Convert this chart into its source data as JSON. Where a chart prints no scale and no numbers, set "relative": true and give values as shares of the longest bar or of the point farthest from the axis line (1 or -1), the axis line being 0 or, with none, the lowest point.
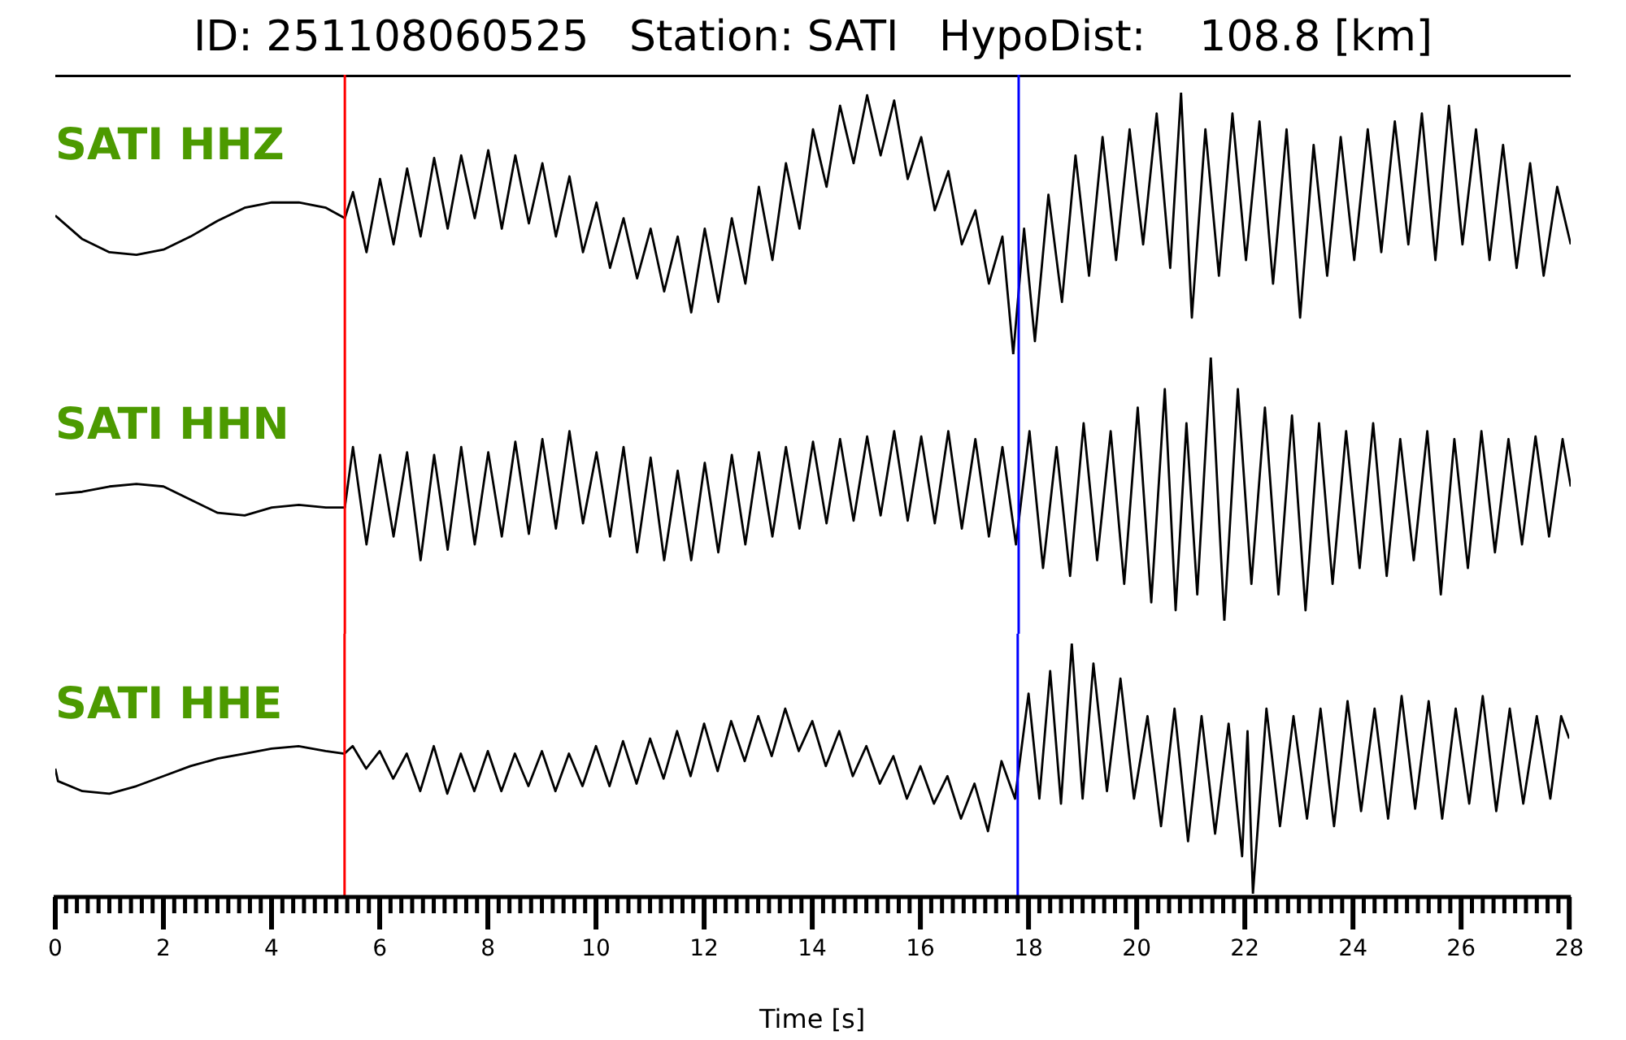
{
  "chart_data": [
    {
      "type": "line",
      "title": "ID: 251108060525   Station: SATI   HypoDist:    108.8 [km]",
      "relative": true,
      "xlim": [
        0,
        28
      ],
      "tick_labels": false,
      "ref_lines": [
        {
          "axis": "x",
          "value": 5.35,
          "color": "#ff0000"
        },
        {
          "axis": "x",
          "value": 17.8,
          "color": "#0000ff"
        }
      ],
      "series": [
        {
          "name": "SATI HHZ",
          "color": "#000000",
          "x": [
            0,
            0.5,
            1,
            1.5,
            2,
            2.5,
            3,
            3.5,
            4,
            4.5,
            5,
            5.35,
            5.5,
            5.75,
            6,
            6.25,
            6.5,
            6.75,
            7,
            7.25,
            7.5,
            7.75,
            8,
            8.25,
            8.5,
            8.75,
            9,
            9.25,
            9.5,
            9.75,
            10,
            10.25,
            10.5,
            10.75,
            11,
            11.25,
            11.5,
            11.75,
            12,
            12.25,
            12.5,
            12.75,
            13,
            13.25,
            13.5,
            13.75,
            14,
            14.25,
            14.5,
            14.75,
            15,
            15.25,
            15.5,
            15.75,
            16,
            16.25,
            16.5,
            16.75,
            17,
            17.25,
            17.5,
            17.7,
            17.9,
            18.1,
            18.35,
            18.6,
            18.85,
            19.1,
            19.35,
            19.6,
            19.85,
            20.1,
            20.35,
            20.6,
            20.8,
            21,
            21.25,
            21.5,
            21.75,
            22,
            22.25,
            22.5,
            22.75,
            23,
            23.25,
            23.5,
            23.75,
            24,
            24.25,
            24.5,
            24.75,
            25,
            25.25,
            25.5,
            25.75,
            26,
            26.25,
            26.5,
            26.75,
            27,
            27.25,
            27.5,
            27.75,
            28
          ],
          "values": [
            0.53,
            0.44,
            0.39,
            0.38,
            0.4,
            0.45,
            0.51,
            0.56,
            0.58,
            0.58,
            0.56,
            0.52,
            0.62,
            0.39,
            0.67,
            0.42,
            0.71,
            0.45,
            0.75,
            0.48,
            0.76,
            0.52,
            0.78,
            0.48,
            0.76,
            0.5,
            0.73,
            0.45,
            0.68,
            0.39,
            0.58,
            0.33,
            0.52,
            0.29,
            0.48,
            0.24,
            0.45,
            0.16,
            0.48,
            0.2,
            0.52,
            0.27,
            0.64,
            0.36,
            0.73,
            0.48,
            0.86,
            0.64,
            0.95,
            0.73,
            0.99,
            0.76,
            0.97,
            0.67,
            0.83,
            0.55,
            0.7,
            0.42,
            0.55,
            0.27,
            0.45,
            0.0,
            0.48,
            0.05,
            0.61,
            0.2,
            0.76,
            0.3,
            0.83,
            0.36,
            0.86,
            0.42,
            0.92,
            0.33,
            1.0,
            0.14,
            0.86,
            0.3,
            0.92,
            0.36,
            0.89,
            0.27,
            0.86,
            0.14,
            0.8,
            0.3,
            0.83,
            0.36,
            0.86,
            0.39,
            0.89,
            0.42,
            0.92,
            0.36,
            0.95,
            0.42,
            0.86,
            0.36,
            0.8,
            0.33,
            0.73,
            0.3,
            0.64,
            0.42
          ]
        }
      ]
    },
    {
      "type": "line",
      "relative": true,
      "xlim": [
        0,
        28
      ],
      "tick_labels": false,
      "ref_lines": [
        {
          "axis": "x",
          "value": 5.35,
          "color": "#ff0000"
        },
        {
          "axis": "x",
          "value": 17.8,
          "color": "#0000ff"
        }
      ],
      "series": [
        {
          "name": "SATI HHN",
          "color": "#000000",
          "x": [
            0,
            0.5,
            1,
            1.5,
            2,
            2.5,
            3,
            3.5,
            4,
            4.5,
            5,
            5.35,
            5.5,
            5.75,
            6,
            6.25,
            6.5,
            6.75,
            7,
            7.25,
            7.5,
            7.75,
            8,
            8.25,
            8.5,
            8.75,
            9,
            9.25,
            9.5,
            9.75,
            10,
            10.25,
            10.5,
            10.75,
            11,
            11.25,
            11.5,
            11.75,
            12,
            12.25,
            12.5,
            12.75,
            13,
            13.25,
            13.5,
            13.75,
            14,
            14.25,
            14.5,
            14.75,
            15,
            15.25,
            15.5,
            15.75,
            16,
            16.25,
            16.5,
            16.75,
            17,
            17.25,
            17.5,
            17.75,
            18,
            18.25,
            18.5,
            18.75,
            19,
            19.25,
            19.5,
            19.75,
            20,
            20.25,
            20.5,
            20.7,
            20.9,
            21.1,
            21.35,
            21.6,
            21.85,
            22.1,
            22.35,
            22.6,
            22.85,
            23.1,
            23.35,
            23.6,
            23.85,
            24.1,
            24.35,
            24.6,
            24.85,
            25.1,
            25.35,
            25.6,
            25.85,
            26.1,
            26.35,
            26.6,
            26.85,
            27.1,
            27.35,
            27.6,
            27.85,
            28
          ],
          "values": [
            0.48,
            0.49,
            0.51,
            0.52,
            0.51,
            0.46,
            0.41,
            0.4,
            0.43,
            0.44,
            0.43,
            0.43,
            0.66,
            0.29,
            0.63,
            0.32,
            0.64,
            0.23,
            0.63,
            0.27,
            0.66,
            0.29,
            0.64,
            0.32,
            0.68,
            0.33,
            0.69,
            0.35,
            0.72,
            0.37,
            0.64,
            0.32,
            0.66,
            0.26,
            0.62,
            0.23,
            0.57,
            0.23,
            0.6,
            0.26,
            0.63,
            0.29,
            0.64,
            0.32,
            0.66,
            0.35,
            0.68,
            0.37,
            0.69,
            0.38,
            0.7,
            0.4,
            0.72,
            0.38,
            0.7,
            0.37,
            0.72,
            0.35,
            0.69,
            0.32,
            0.66,
            0.29,
            0.72,
            0.2,
            0.66,
            0.17,
            0.75,
            0.23,
            0.72,
            0.14,
            0.81,
            0.07,
            0.88,
            0.04,
            0.75,
            0.1,
            1.0,
            0.0,
            0.88,
            0.14,
            0.81,
            0.1,
            0.78,
            0.04,
            0.75,
            0.14,
            0.72,
            0.2,
            0.75,
            0.17,
            0.69,
            0.23,
            0.72,
            0.1,
            0.69,
            0.2,
            0.72,
            0.26,
            0.69,
            0.29,
            0.7,
            0.32,
            0.69,
            0.51
          ]
        }
      ]
    },
    {
      "type": "line",
      "relative": true,
      "xlim": [
        0,
        28
      ],
      "xlabel": "Time [s]",
      "xticks": [
        0,
        {
          "value": 0.2,
          "label": null
        },
        {
          "value": 0.4,
          "label": null
        },
        {
          "value": 0.6,
          "label": null
        },
        {
          "value": 0.8,
          "label": null
        },
        {
          "value": 1,
          "label": null
        },
        {
          "value": 1.2,
          "label": null
        },
        {
          "value": 1.4,
          "label": null
        },
        {
          "value": 1.6,
          "label": null
        },
        {
          "value": 1.8,
          "label": null
        },
        2,
        {
          "value": 2.2,
          "label": null
        },
        {
          "value": 2.4,
          "label": null
        },
        {
          "value": 2.6,
          "label": null
        },
        {
          "value": 2.8,
          "label": null
        },
        {
          "value": 3,
          "label": null
        },
        {
          "value": 3.2,
          "label": null
        },
        {
          "value": 3.4,
          "label": null
        },
        {
          "value": 3.6,
          "label": null
        },
        {
          "value": 3.8,
          "label": null
        },
        4,
        {
          "value": 4.2,
          "label": null
        },
        {
          "value": 4.4,
          "label": null
        },
        {
          "value": 4.6,
          "label": null
        },
        {
          "value": 4.8,
          "label": null
        },
        {
          "value": 5,
          "label": null
        },
        {
          "value": 5.2,
          "label": null
        },
        {
          "value": 5.4,
          "label": null
        },
        {
          "value": 5.6,
          "label": null
        },
        {
          "value": 5.8,
          "label": null
        },
        6,
        {
          "value": 6.2,
          "label": null
        },
        {
          "value": 6.4,
          "label": null
        },
        {
          "value": 6.6,
          "label": null
        },
        {
          "value": 6.8,
          "label": null
        },
        {
          "value": 7,
          "label": null
        },
        {
          "value": 7.2,
          "label": null
        },
        {
          "value": 7.4,
          "label": null
        },
        {
          "value": 7.6,
          "label": null
        },
        {
          "value": 7.8,
          "label": null
        },
        8,
        {
          "value": 8.2,
          "label": null
        },
        {
          "value": 8.4,
          "label": null
        },
        {
          "value": 8.6,
          "label": null
        },
        {
          "value": 8.8,
          "label": null
        },
        {
          "value": 9,
          "label": null
        },
        {
          "value": 9.2,
          "label": null
        },
        {
          "value": 9.4,
          "label": null
        },
        {
          "value": 9.6,
          "label": null
        },
        {
          "value": 9.8,
          "label": null
        },
        10,
        {
          "value": 10.2,
          "label": null
        },
        {
          "value": 10.4,
          "label": null
        },
        {
          "value": 10.6,
          "label": null
        },
        {
          "value": 10.8,
          "label": null
        },
        {
          "value": 11,
          "label": null
        },
        {
          "value": 11.2,
          "label": null
        },
        {
          "value": 11.4,
          "label": null
        },
        {
          "value": 11.6,
          "label": null
        },
        {
          "value": 11.8,
          "label": null
        },
        12,
        {
          "value": 12.2,
          "label": null
        },
        {
          "value": 12.4,
          "label": null
        },
        {
          "value": 12.6,
          "label": null
        },
        {
          "value": 12.8,
          "label": null
        },
        {
          "value": 13,
          "label": null
        },
        {
          "value": 13.2,
          "label": null
        },
        {
          "value": 13.4,
          "label": null
        },
        {
          "value": 13.6,
          "label": null
        },
        {
          "value": 13.8,
          "label": null
        },
        14,
        {
          "value": 14.2,
          "label": null
        },
        {
          "value": 14.4,
          "label": null
        },
        {
          "value": 14.6,
          "label": null
        },
        {
          "value": 14.8,
          "label": null
        },
        {
          "value": 15,
          "label": null
        },
        {
          "value": 15.2,
          "label": null
        },
        {
          "value": 15.4,
          "label": null
        },
        {
          "value": 15.6,
          "label": null
        },
        {
          "value": 15.8,
          "label": null
        },
        16,
        {
          "value": 16.2,
          "label": null
        },
        {
          "value": 16.4,
          "label": null
        },
        {
          "value": 16.6,
          "label": null
        },
        {
          "value": 16.8,
          "label": null
        },
        {
          "value": 17,
          "label": null
        },
        {
          "value": 17.2,
          "label": null
        },
        {
          "value": 17.4,
          "label": null
        },
        {
          "value": 17.6,
          "label": null
        },
        {
          "value": 17.8,
          "label": null
        },
        18,
        {
          "value": 18.2,
          "label": null
        },
        {
          "value": 18.4,
          "label": null
        },
        {
          "value": 18.6,
          "label": null
        },
        {
          "value": 18.8,
          "label": null
        },
        {
          "value": 19,
          "label": null
        },
        {
          "value": 19.2,
          "label": null
        },
        {
          "value": 19.4,
          "label": null
        },
        {
          "value": 19.6,
          "label": null
        },
        {
          "value": 19.8,
          "label": null
        },
        20,
        {
          "value": 20.2,
          "label": null
        },
        {
          "value": 20.4,
          "label": null
        },
        {
          "value": 20.6,
          "label": null
        },
        {
          "value": 20.8,
          "label": null
        },
        {
          "value": 21,
          "label": null
        },
        {
          "value": 21.2,
          "label": null
        },
        {
          "value": 21.4,
          "label": null
        },
        {
          "value": 21.6,
          "label": null
        },
        {
          "value": 21.8,
          "label": null
        },
        22,
        {
          "value": 22.2,
          "label": null
        },
        {
          "value": 22.4,
          "label": null
        },
        {
          "value": 22.6,
          "label": null
        },
        {
          "value": 22.8,
          "label": null
        },
        {
          "value": 23,
          "label": null
        },
        {
          "value": 23.2,
          "label": null
        },
        {
          "value": 23.4,
          "label": null
        },
        {
          "value": 23.6,
          "label": null
        },
        {
          "value": 23.8,
          "label": null
        },
        24,
        {
          "value": 24.2,
          "label": null
        },
        {
          "value": 24.4,
          "label": null
        },
        {
          "value": 24.6,
          "label": null
        },
        {
          "value": 24.8,
          "label": null
        },
        {
          "value": 25,
          "label": null
        },
        {
          "value": 25.2,
          "label": null
        },
        {
          "value": 25.4,
          "label": null
        },
        {
          "value": 25.6,
          "label": null
        },
        {
          "value": 25.8,
          "label": null
        },
        26,
        {
          "value": 26.2,
          "label": null
        },
        {
          "value": 26.4,
          "label": null
        },
        {
          "value": 26.6,
          "label": null
        },
        {
          "value": 26.8,
          "label": null
        },
        {
          "value": 27,
          "label": null
        },
        {
          "value": 27.2,
          "label": null
        },
        {
          "value": 27.4,
          "label": null
        },
        {
          "value": 27.6,
          "label": null
        },
        {
          "value": 27.8,
          "label": null
        },
        28
      ],
      "ref_lines": [
        {
          "axis": "x",
          "value": 5.35,
          "color": "#ff0000"
        },
        {
          "axis": "x",
          "value": 17.8,
          "color": "#0000ff"
        }
      ],
      "series": [
        {
          "name": "SATI HHE",
          "color": "#000000",
          "x": [
            0,
            0.05,
            0.5,
            1,
            1.5,
            2,
            2.5,
            3,
            3.5,
            4,
            4.5,
            5,
            5.35,
            5.5,
            5.75,
            6,
            6.25,
            6.5,
            6.75,
            7,
            7.25,
            7.5,
            7.75,
            8,
            8.25,
            8.5,
            8.75,
            9,
            9.25,
            9.5,
            9.75,
            10,
            10.25,
            10.5,
            10.75,
            11,
            11.25,
            11.5,
            11.75,
            12,
            12.25,
            12.5,
            12.75,
            13,
            13.25,
            13.5,
            13.75,
            14,
            14.25,
            14.5,
            14.75,
            15,
            15.25,
            15.5,
            15.75,
            16,
            16.25,
            16.5,
            16.75,
            17,
            17.25,
            17.5,
            17.75,
            18,
            18.2,
            18.4,
            18.6,
            18.8,
            19,
            19.2,
            19.45,
            19.7,
            19.95,
            20.2,
            20.45,
            20.7,
            20.95,
            21.2,
            21.45,
            21.7,
            21.95,
            22.05,
            22.15,
            22.4,
            22.65,
            22.9,
            23.15,
            23.4,
            23.65,
            23.9,
            24.15,
            24.4,
            24.65,
            24.9,
            25.15,
            25.4,
            25.65,
            25.9,
            26.15,
            26.4,
            26.65,
            26.9,
            27.15,
            27.4,
            27.65,
            27.85,
            28
          ],
          "values": [
            0.5,
            0.45,
            0.41,
            0.4,
            0.43,
            0.47,
            0.51,
            0.54,
            0.56,
            0.58,
            0.59,
            0.57,
            0.56,
            0.59,
            0.5,
            0.57,
            0.46,
            0.56,
            0.41,
            0.59,
            0.4,
            0.56,
            0.41,
            0.57,
            0.41,
            0.56,
            0.43,
            0.57,
            0.41,
            0.56,
            0.43,
            0.59,
            0.43,
            0.61,
            0.44,
            0.62,
            0.46,
            0.65,
            0.47,
            0.68,
            0.49,
            0.69,
            0.53,
            0.71,
            0.55,
            0.74,
            0.57,
            0.69,
            0.51,
            0.65,
            0.47,
            0.59,
            0.44,
            0.55,
            0.38,
            0.51,
            0.36,
            0.47,
            0.3,
            0.44,
            0.25,
            0.53,
            0.38,
            0.8,
            0.38,
            0.89,
            0.36,
            1.0,
            0.38,
            0.92,
            0.41,
            0.86,
            0.38,
            0.71,
            0.27,
            0.74,
            0.21,
            0.71,
            0.24,
            0.68,
            0.15,
            0.65,
            0.0,
            0.74,
            0.27,
            0.71,
            0.3,
            0.74,
            0.27,
            0.77,
            0.33,
            0.74,
            0.3,
            0.79,
            0.34,
            0.77,
            0.3,
            0.74,
            0.36,
            0.79,
            0.33,
            0.74,
            0.36,
            0.71,
            0.38,
            0.71,
            0.62
          ]
        }
      ]
    }
  ]
}
